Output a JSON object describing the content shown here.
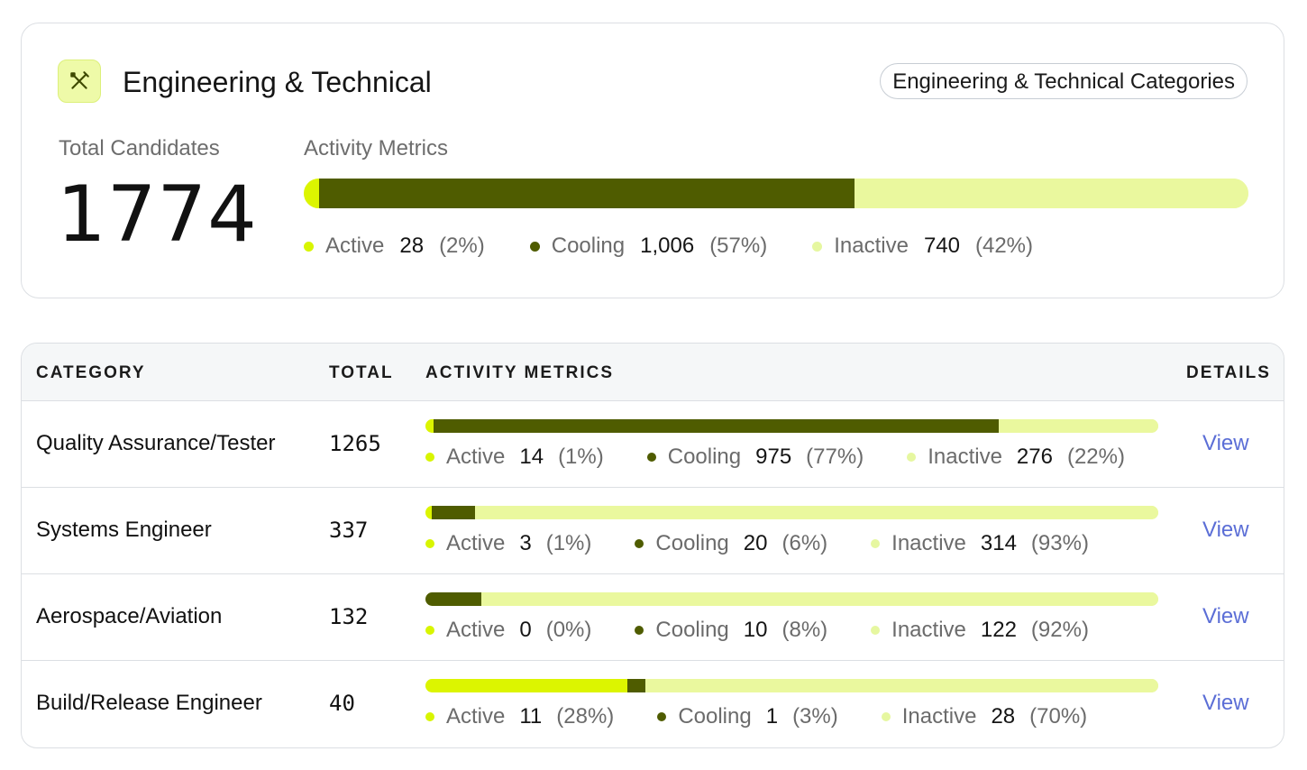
{
  "summary": {
    "title": "Engineering & Technical",
    "categories_button": "Engineering & Technical Categories",
    "icon": "tools-icon",
    "total_label": "Total Candidates",
    "total_value": "1774",
    "metrics_label": "Activity Metrics",
    "active": {
      "label": "Active",
      "count": "28",
      "pct": "(2%)",
      "fraction": 0.016
    },
    "cooling": {
      "label": "Cooling",
      "count": "1,006",
      "pct": "(57%)",
      "fraction": 0.567
    },
    "inactive": {
      "label": "Inactive",
      "count": "740",
      "pct": "(42%)",
      "fraction": 0.417
    }
  },
  "table": {
    "headers": {
      "category": "CATEGORY",
      "total": "TOTAL",
      "metrics": "ACTIVITY METRICS",
      "details": "DETAILS"
    },
    "rows": [
      {
        "category": "Quality Assurance/Tester",
        "total": "1265",
        "view": "View",
        "active": {
          "label": "Active",
          "count": "14",
          "pct": "(1%)",
          "fraction": 0.011
        },
        "cooling": {
          "label": "Cooling",
          "count": "975",
          "pct": "(77%)",
          "fraction": 0.771
        },
        "inactive": {
          "label": "Inactive",
          "count": "276",
          "pct": "(22%)",
          "fraction": 0.218
        }
      },
      {
        "category": "Systems Engineer",
        "total": "337",
        "view": "View",
        "active": {
          "label": "Active",
          "count": "3",
          "pct": "(1%)",
          "fraction": 0.009
        },
        "cooling": {
          "label": "Cooling",
          "count": "20",
          "pct": "(6%)",
          "fraction": 0.059
        },
        "inactive": {
          "label": "Inactive",
          "count": "314",
          "pct": "(93%)",
          "fraction": 0.932
        }
      },
      {
        "category": "Aerospace/Aviation",
        "total": "132",
        "view": "View",
        "active": {
          "label": "Active",
          "count": "0",
          "pct": "(0%)",
          "fraction": 0.0
        },
        "cooling": {
          "label": "Cooling",
          "count": "10",
          "pct": "(8%)",
          "fraction": 0.076
        },
        "inactive": {
          "label": "Inactive",
          "count": "122",
          "pct": "(92%)",
          "fraction": 0.924
        }
      },
      {
        "category": "Build/Release Engineer",
        "total": "40",
        "view": "View",
        "active": {
          "label": "Active",
          "count": "11",
          "pct": "(28%)",
          "fraction": 0.275
        },
        "cooling": {
          "label": "Cooling",
          "count": "1",
          "pct": "(3%)",
          "fraction": 0.025
        },
        "inactive": {
          "label": "Inactive",
          "count": "28",
          "pct": "(70%)",
          "fraction": 0.7
        }
      }
    ]
  },
  "colors": {
    "active": "#dcf500",
    "cooling": "#4f5c00",
    "inactive": "#eaf89e",
    "link": "#5b6ed6"
  }
}
